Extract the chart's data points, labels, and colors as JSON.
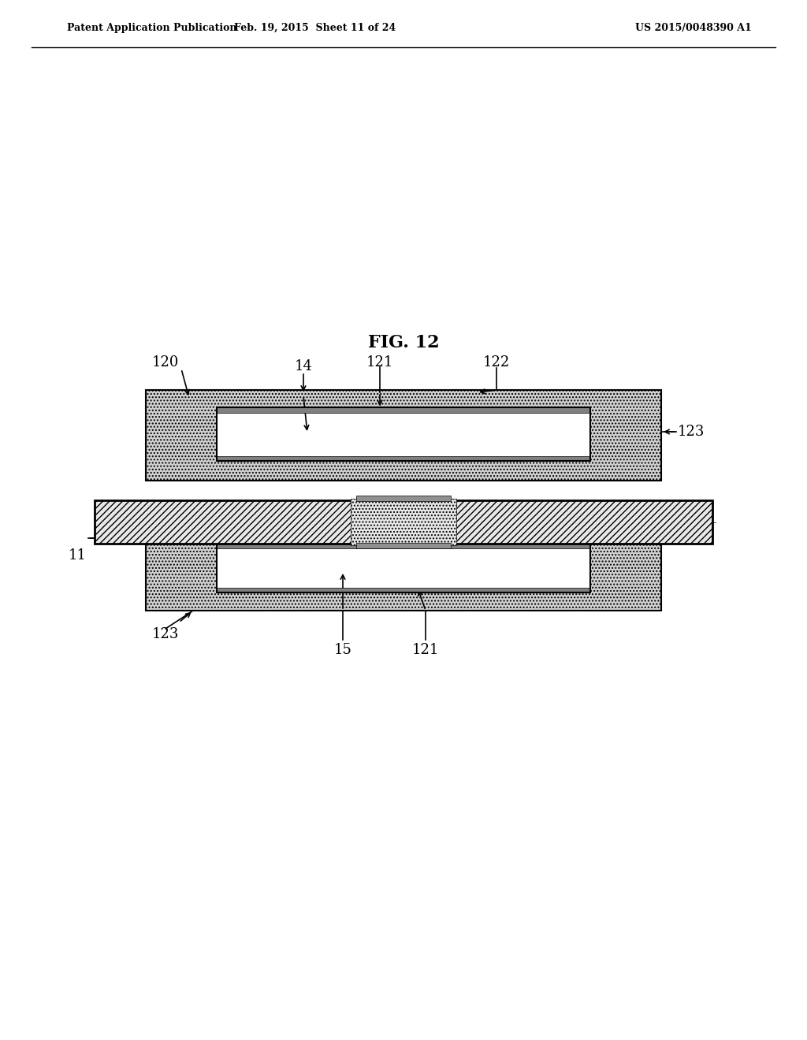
{
  "title": "FIG. 12",
  "header_left": "Patent Application Publication",
  "header_center": "Feb. 19, 2015  Sheet 11 of 24",
  "header_right": "US 2015/0048390 A1",
  "bg_color": "#ffffff",
  "black": "#000000",
  "gray_light": "#d8d8d8",
  "gray_medium": "#aaaaaa",
  "hatch_color": "#000000",
  "dot_color": "#cccccc"
}
